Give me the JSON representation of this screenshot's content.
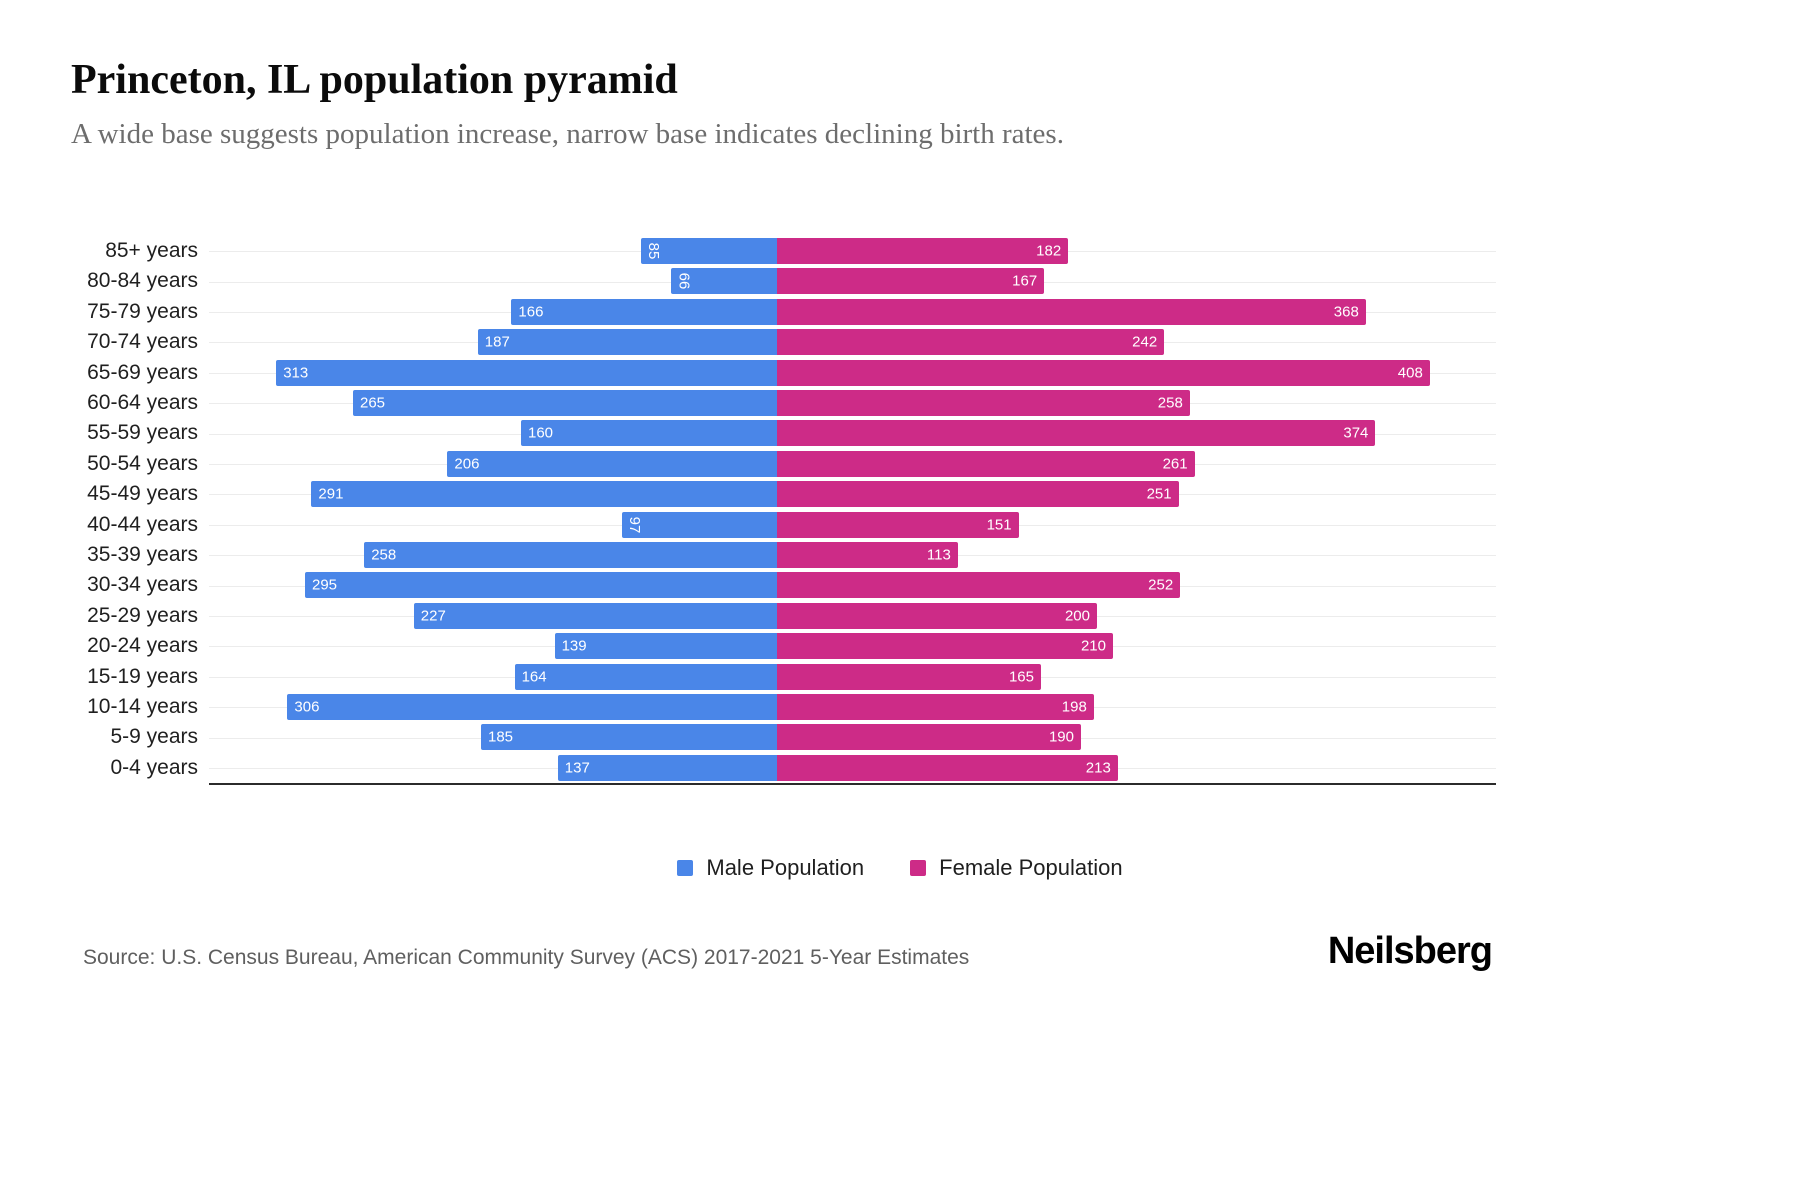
{
  "header": {
    "title": "Princeton, IL population pyramid",
    "subtitle": "A wide base suggests population increase, narrow base indicates declining birth rates."
  },
  "chart_data": {
    "type": "bar",
    "variant": "population-pyramid",
    "orientation": "horizontal",
    "title": "Princeton, IL population pyramid",
    "subtitle": "A wide base suggests population increase, narrow base indicates declining birth rates.",
    "categories_order": "top-to-bottom",
    "categories": [
      "85+ years",
      "80-84 years",
      "75-79 years",
      "70-74 years",
      "65-69 years",
      "60-64 years",
      "55-59 years",
      "50-54 years",
      "45-49 years",
      "40-44 years",
      "35-39 years",
      "30-34 years",
      "25-29 years",
      "20-24 years",
      "15-19 years",
      "10-14 years",
      "5-9 years",
      "0-4 years"
    ],
    "series": [
      {
        "name": "Male Population",
        "color": "#4a86e8",
        "direction": "left",
        "values": [
          85,
          66,
          166,
          187,
          313,
          265,
          160,
          206,
          291,
          97,
          258,
          295,
          227,
          139,
          164,
          306,
          185,
          137
        ]
      },
      {
        "name": "Female Population",
        "color": "#cd2b87",
        "direction": "right",
        "values": [
          182,
          167,
          368,
          242,
          408,
          258,
          374,
          261,
          251,
          151,
          113,
          252,
          200,
          210,
          165,
          198,
          190,
          213
        ]
      }
    ],
    "value_axis": {
      "min": 0,
      "max": 408,
      "ticks_visible": false
    },
    "grid": "horizontal-light",
    "bar_value_labels": "inside-white",
    "legend_position": "bottom"
  },
  "legend": {
    "items": [
      {
        "label": "Male Population",
        "color": "#4a86e8"
      },
      {
        "label": "Female Population",
        "color": "#cd2b87"
      }
    ]
  },
  "footer": {
    "source": "Source: U.S. Census Bureau, American Community Survey (ACS) 2017-2021 5-Year Estimates",
    "brand": "Neilsberg"
  }
}
